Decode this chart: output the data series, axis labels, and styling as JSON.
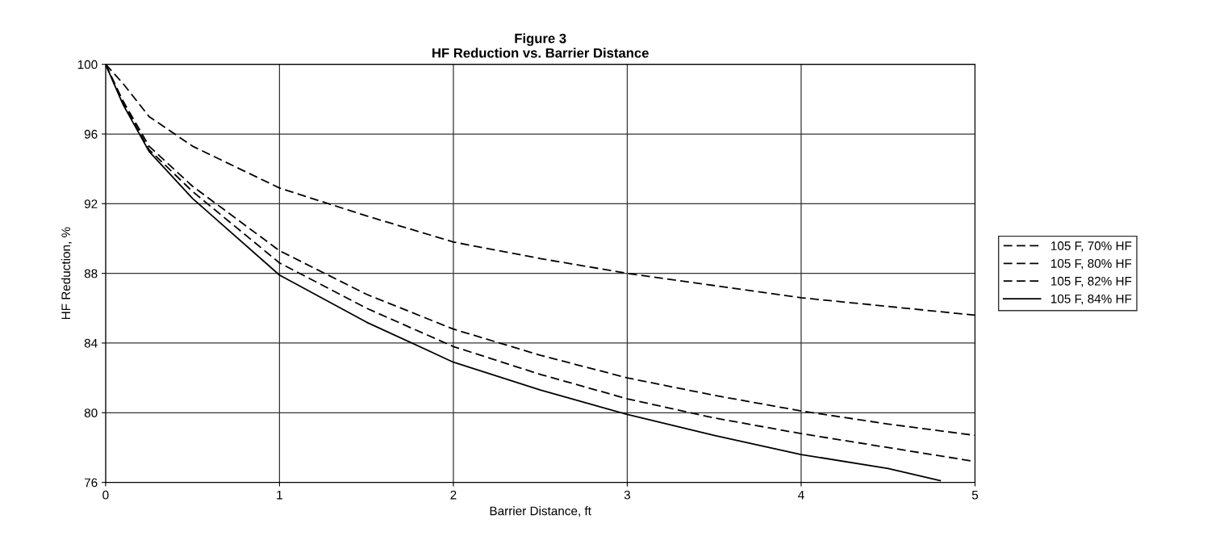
{
  "chart_data": {
    "type": "line",
    "title": "Figure 3\nHF Reduction vs. Barrier Distance",
    "xlabel": "Barrier Distance, ft",
    "ylabel": "HF Reduction, %",
    "xlim": [
      0,
      5
    ],
    "xticks": [
      0,
      1,
      2,
      3,
      4,
      5
    ],
    "ylim": [
      76,
      100
    ],
    "yticks": [
      76,
      80,
      84,
      88,
      92,
      96,
      100
    ],
    "grid": true,
    "legend": "right",
    "marker": "none",
    "series": [
      {
        "name": "105 F, 70% HF",
        "color": "#000000",
        "line_style": "dashed",
        "x": [
          0,
          0.1,
          0.25,
          0.5,
          1,
          1.5,
          2,
          2.5,
          3,
          3.5,
          4,
          4.5,
          5
        ],
        "values": [
          100,
          98.9,
          97.0,
          95.3,
          92.9,
          91.3,
          89.8,
          88.85,
          88.0,
          87.3,
          86.6,
          86.1,
          85.6
        ]
      },
      {
        "name": "105 F, 80% HF",
        "color": "#000000",
        "line_style": "dashed",
        "x": [
          0,
          0.1,
          0.25,
          0.5,
          1,
          1.5,
          2,
          2.5,
          3,
          3.5,
          4,
          4.5,
          5
        ],
        "values": [
          100,
          97.9,
          95.3,
          93.0,
          89.3,
          86.8,
          84.8,
          83.3,
          82.0,
          81.0,
          80.1,
          79.35,
          78.7
        ]
      },
      {
        "name": "105 F, 82% HF",
        "color": "#000000",
        "line_style": "dashed",
        "x": [
          0,
          0.1,
          0.25,
          0.5,
          1,
          1.5,
          2,
          2.5,
          3,
          3.5,
          4,
          4.5,
          5
        ],
        "values": [
          100,
          97.8,
          95.1,
          92.7,
          88.6,
          86.0,
          83.8,
          82.2,
          80.8,
          79.7,
          78.8,
          78.0,
          77.2
        ]
      },
      {
        "name": "105 F, 84% HF",
        "color": "#000000",
        "line_style": "solid",
        "x": [
          0,
          0.1,
          0.25,
          0.5,
          1,
          1.5,
          2,
          2.5,
          3,
          3.5,
          4,
          4.5,
          4.8
        ],
        "values": [
          100,
          97.7,
          95.0,
          92.3,
          87.9,
          85.2,
          82.9,
          81.3,
          79.9,
          78.7,
          77.6,
          76.8,
          76.1
        ]
      }
    ]
  }
}
